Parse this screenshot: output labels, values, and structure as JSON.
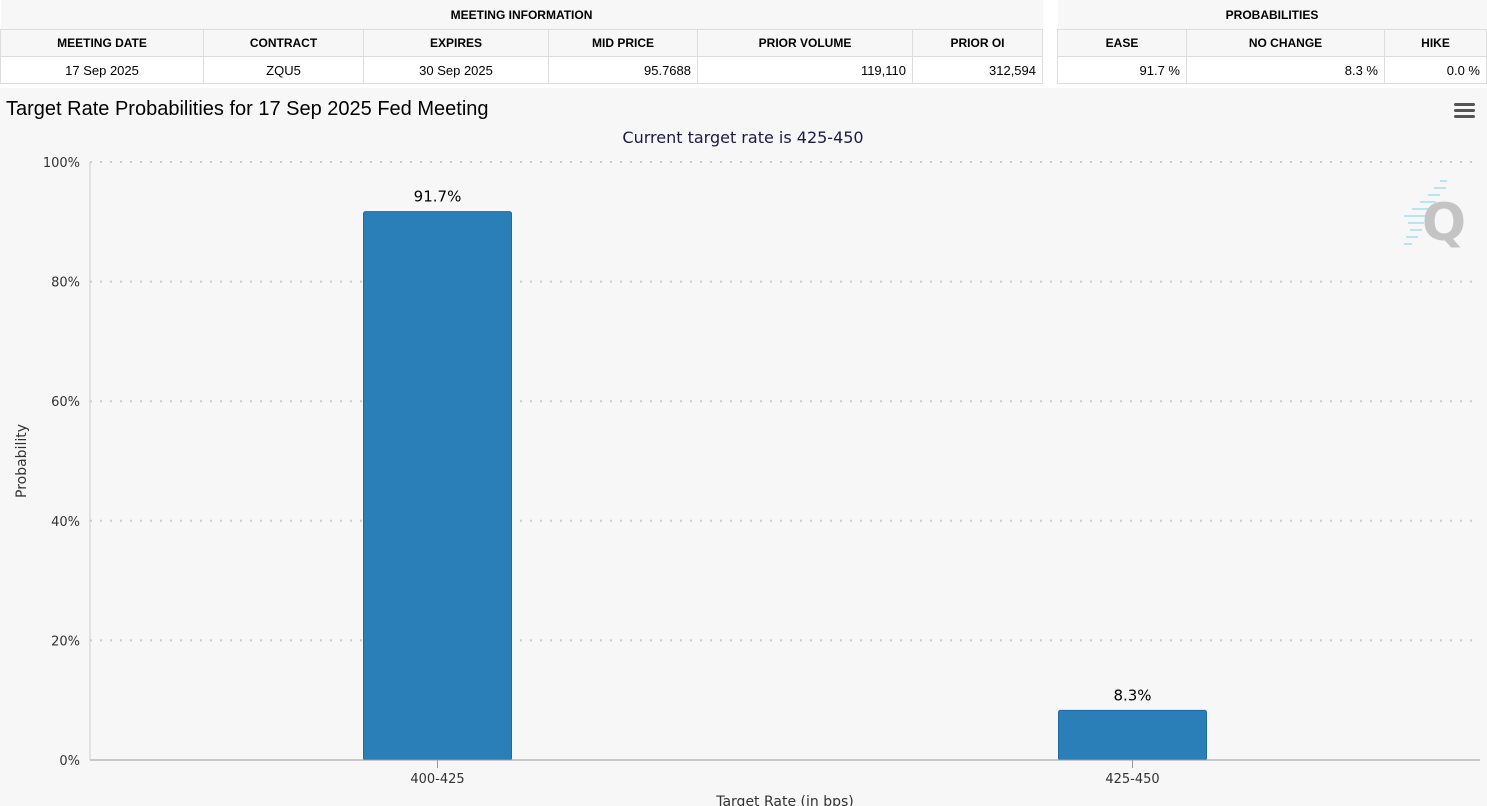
{
  "meeting_info": {
    "group_title": "MEETING INFORMATION",
    "headers": [
      "MEETING DATE",
      "CONTRACT",
      "EXPIRES",
      "MID PRICE",
      "PRIOR VOLUME",
      "PRIOR OI"
    ],
    "row": [
      "17 Sep 2025",
      "ZQU5",
      "30 Sep 2025",
      "95.7688",
      "119,110",
      "312,594"
    ]
  },
  "probabilities": {
    "group_title": "PROBABILITIES",
    "headers": [
      "EASE",
      "NO CHANGE",
      "HIKE"
    ],
    "row": [
      "91.7 %",
      "8.3 %",
      "0.0 %"
    ]
  },
  "menu_icon": "hamburger-menu-icon",
  "watermark_icon": "q-logo-icon",
  "chart_data": {
    "type": "bar",
    "title": "Target Rate Probabilities for 17 Sep 2025 Fed Meeting",
    "subtitle": "Current target rate is 425-450",
    "xlabel": "Target Rate (in bps)",
    "ylabel": "Probability",
    "categories": [
      "400-425",
      "425-450"
    ],
    "values": [
      91.7,
      8.3
    ],
    "data_labels": [
      "91.7%",
      "8.3%"
    ],
    "ylim": [
      0,
      100
    ],
    "yticks": [
      "0%",
      "20%",
      "40%",
      "60%",
      "80%",
      "100%"
    ],
    "grid": true,
    "bar_color": "#2a7fb8"
  }
}
